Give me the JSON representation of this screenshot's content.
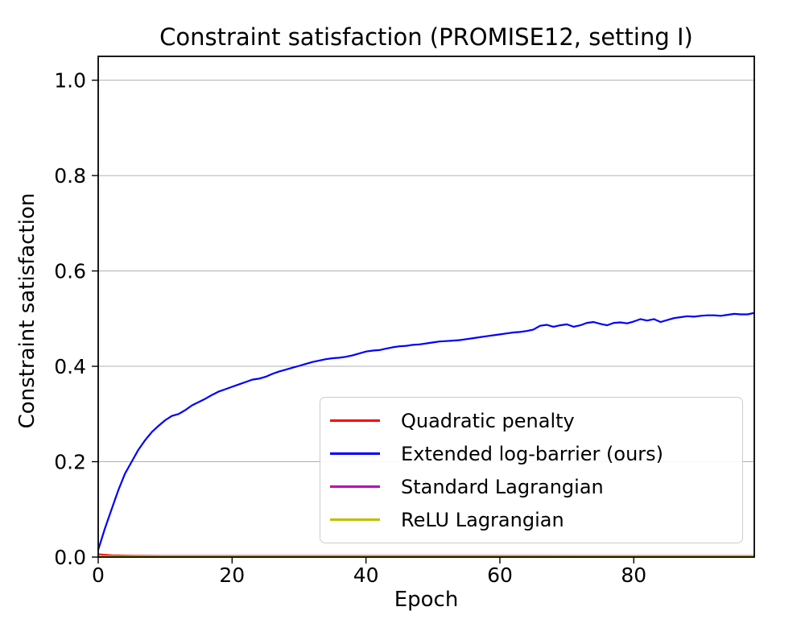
{
  "figure": {
    "title": "Constraint satisfaction (PROMISE12, setting I)",
    "xlabel": "Epoch",
    "ylabel": "Constraint satisfaction"
  },
  "chart_data": {
    "type": "line",
    "title": "Constraint satisfaction (PROMISE12, setting I)",
    "xlabel": "Epoch",
    "ylabel": "Constraint satisfaction",
    "xlim": [
      0,
      98
    ],
    "ylim": [
      0,
      1.05
    ],
    "x_ticks": [
      0,
      20,
      40,
      60,
      80
    ],
    "x_tick_labels": [
      "0",
      "20",
      "40",
      "60",
      "80"
    ],
    "y_ticks": [
      0.0,
      0.2,
      0.4,
      0.6,
      0.8,
      1.0
    ],
    "y_tick_labels": [
      "0.0",
      "0.2",
      "0.4",
      "0.6",
      "0.8",
      "1.0"
    ],
    "grid": "horizontal-only",
    "grid_color": "#b0b0b0",
    "spine_color": "#000000",
    "legend_position": "inside lower-right",
    "series": [
      {
        "name": "Quadratic penalty",
        "color": "#ff0000",
        "line_width": 1.8,
        "points": [
          [
            0,
            0.006
          ],
          [
            2,
            0.004
          ],
          [
            5,
            0.003
          ],
          [
            10,
            0.0027
          ],
          [
            98,
            0.0025
          ]
        ]
      },
      {
        "name": "Extended log-barrier (ours)",
        "color": "#0000ff",
        "line_width": 2.2,
        "x_start": 0,
        "x_step": 1,
        "values": [
          0.015,
          0.06,
          0.1,
          0.14,
          0.175,
          0.2,
          0.225,
          0.245,
          0.262,
          0.275,
          0.287,
          0.296,
          0.3,
          0.308,
          0.318,
          0.325,
          0.332,
          0.34,
          0.347,
          0.352,
          0.357,
          0.362,
          0.367,
          0.372,
          0.374,
          0.378,
          0.384,
          0.389,
          0.393,
          0.397,
          0.401,
          0.405,
          0.409,
          0.412,
          0.415,
          0.417,
          0.418,
          0.42,
          0.423,
          0.427,
          0.431,
          0.433,
          0.434,
          0.437,
          0.44,
          0.442,
          0.443,
          0.445,
          0.446,
          0.448,
          0.45,
          0.452,
          0.453,
          0.454,
          0.455,
          0.457,
          0.459,
          0.461,
          0.463,
          0.465,
          0.467,
          0.469,
          0.471,
          0.472,
          0.474,
          0.477,
          0.485,
          0.487,
          0.483,
          0.486,
          0.488,
          0.483,
          0.486,
          0.491,
          0.493,
          0.489,
          0.486,
          0.491,
          0.492,
          0.49,
          0.494,
          0.499,
          0.496,
          0.499,
          0.493,
          0.497,
          0.501,
          0.503,
          0.505,
          0.504,
          0.506,
          0.507,
          0.507,
          0.506,
          0.508,
          0.51,
          0.509,
          0.509,
          0.512
        ]
      },
      {
        "name": "Standard Lagrangian",
        "color": "#bf00bf",
        "line_width": 1.8,
        "points": [
          [
            0,
            0.0012
          ],
          [
            98,
            0.0012
          ]
        ]
      },
      {
        "name": "ReLU Lagrangian",
        "color": "#bfbf00",
        "line_width": 1.8,
        "points": [
          [
            0,
            0.002
          ],
          [
            98,
            0.002
          ]
        ]
      }
    ]
  }
}
